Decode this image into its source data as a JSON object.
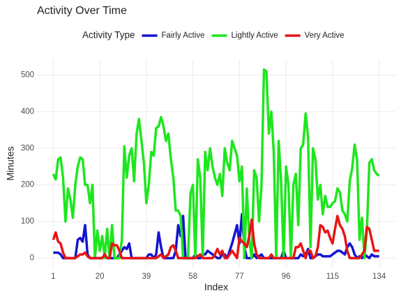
{
  "chart_data": {
    "type": "line",
    "title": "Activity Over Time",
    "x_label": "Index",
    "y_label": "Minutes",
    "legend_title": "Activity Type",
    "legend_position": "top",
    "grid": true,
    "xlim": [
      -5.65,
      140.65
    ],
    "ylim": [
      -25.85,
      542.85
    ],
    "xticks": [
      1,
      20,
      39,
      58,
      77,
      96,
      115,
      134
    ],
    "yticks": [
      0,
      100,
      200,
      300,
      400,
      500
    ],
    "x": [
      1,
      2,
      3,
      4,
      5,
      6,
      7,
      8,
      9,
      10,
      11,
      12,
      13,
      14,
      15,
      16,
      17,
      18,
      19,
      20,
      21,
      22,
      23,
      24,
      25,
      26,
      27,
      28,
      29,
      30,
      31,
      32,
      33,
      34,
      35,
      36,
      37,
      38,
      39,
      40,
      41,
      42,
      43,
      44,
      45,
      46,
      47,
      48,
      49,
      50,
      51,
      52,
      53,
      54,
      55,
      56,
      57,
      58,
      59,
      60,
      61,
      62,
      63,
      64,
      65,
      66,
      67,
      68,
      69,
      70,
      71,
      72,
      73,
      74,
      75,
      76,
      77,
      78,
      79,
      80,
      81,
      82,
      83,
      84,
      85,
      86,
      87,
      88,
      89,
      90,
      91,
      92,
      93,
      94,
      95,
      96,
      97,
      98,
      99,
      100,
      101,
      102,
      103,
      104,
      105,
      106,
      107,
      108,
      109,
      110,
      111,
      112,
      113,
      114,
      115,
      116,
      117,
      118,
      119,
      120,
      121,
      122,
      123,
      124,
      125,
      126,
      127,
      128,
      129,
      130,
      131,
      132,
      133,
      134
    ],
    "series": [
      {
        "name": "Fairly Active",
        "color": "#1414d2",
        "values": [
          15,
          15,
          15,
          10,
          0,
          0,
          0,
          0,
          0,
          0,
          50,
          55,
          45,
          90,
          10,
          0,
          0,
          0,
          0,
          0,
          0,
          10,
          0,
          0,
          0,
          0,
          0,
          10,
          20,
          30,
          25,
          40,
          0,
          0,
          0,
          0,
          0,
          0,
          0,
          10,
          10,
          0,
          10,
          70,
          30,
          0,
          0,
          0,
          0,
          0,
          20,
          90,
          60,
          115,
          0,
          0,
          0,
          0,
          10,
          0,
          0,
          10,
          10,
          20,
          15,
          10,
          5,
          0,
          0,
          10,
          10,
          0,
          20,
          40,
          65,
          90,
          40,
          120,
          30,
          0,
          0,
          0,
          10,
          0,
          5,
          10,
          0,
          0,
          0,
          0,
          0,
          0,
          0,
          0,
          20,
          0,
          0,
          0,
          0,
          0,
          0,
          10,
          5,
          10,
          25,
          0,
          0,
          5,
          10,
          10,
          5,
          5,
          5,
          5,
          10,
          15,
          20,
          20,
          15,
          10,
          30,
          40,
          30,
          10,
          0,
          5,
          0,
          10,
          5,
          0,
          10,
          5,
          5,
          5
        ]
      },
      {
        "name": "Lightly Active",
        "color": "#1ee61e",
        "values": [
          230,
          215,
          270,
          275,
          220,
          100,
          190,
          160,
          110,
          200,
          250,
          275,
          270,
          200,
          200,
          150,
          200,
          0,
          75,
          20,
          60,
          0,
          80,
          0,
          90,
          0,
          0,
          0,
          50,
          305,
          220,
          280,
          300,
          210,
          340,
          380,
          320,
          260,
          150,
          200,
          290,
          280,
          355,
          360,
          385,
          360,
          320,
          340,
          270,
          220,
          130,
          130,
          115,
          0,
          0,
          0,
          175,
          200,
          0,
          270,
          220,
          0,
          290,
          240,
          300,
          250,
          220,
          200,
          230,
          170,
          300,
          260,
          240,
          320,
          300,
          280,
          210,
          250,
          0,
          190,
          50,
          0,
          240,
          220,
          100,
          200,
          515,
          510,
          340,
          400,
          290,
          0,
          320,
          210,
          0,
          250,
          200,
          0,
          200,
          230,
          90,
          300,
          310,
          395,
          330,
          30,
          300,
          270,
          160,
          200,
          120,
          170,
          140,
          140,
          150,
          155,
          190,
          180,
          130,
          120,
          100,
          210,
          245,
          310,
          270,
          50,
          110,
          0,
          75,
          260,
          270,
          240,
          230,
          225
        ]
      },
      {
        "name": "Very Active",
        "color": "#e81414",
        "values": [
          50,
          70,
          45,
          40,
          15,
          0,
          0,
          0,
          0,
          0,
          5,
          10,
          10,
          15,
          5,
          0,
          0,
          0,
          0,
          0,
          0,
          10,
          0,
          0,
          40,
          35,
          35,
          20,
          0,
          0,
          0,
          0,
          0,
          0,
          0,
          0,
          0,
          0,
          0,
          0,
          0,
          0,
          0,
          5,
          10,
          0,
          5,
          10,
          30,
          35,
          20,
          0,
          0,
          0,
          0,
          0,
          0,
          0,
          0,
          5,
          10,
          0,
          0,
          0,
          0,
          0,
          10,
          25,
          10,
          20,
          0,
          0,
          10,
          20,
          10,
          0,
          55,
          45,
          40,
          30,
          60,
          105,
          40,
          10,
          0,
          0,
          0,
          0,
          0,
          10,
          0,
          0,
          0,
          0,
          0,
          0,
          0,
          0,
          0,
          30,
          30,
          40,
          20,
          0,
          20,
          20,
          0,
          5,
          30,
          90,
          85,
          70,
          75,
          55,
          40,
          80,
          115,
          90,
          80,
          60,
          20,
          0,
          0,
          0,
          0,
          0,
          10,
          20,
          85,
          80,
          50,
          20,
          20,
          20
        ]
      }
    ]
  }
}
